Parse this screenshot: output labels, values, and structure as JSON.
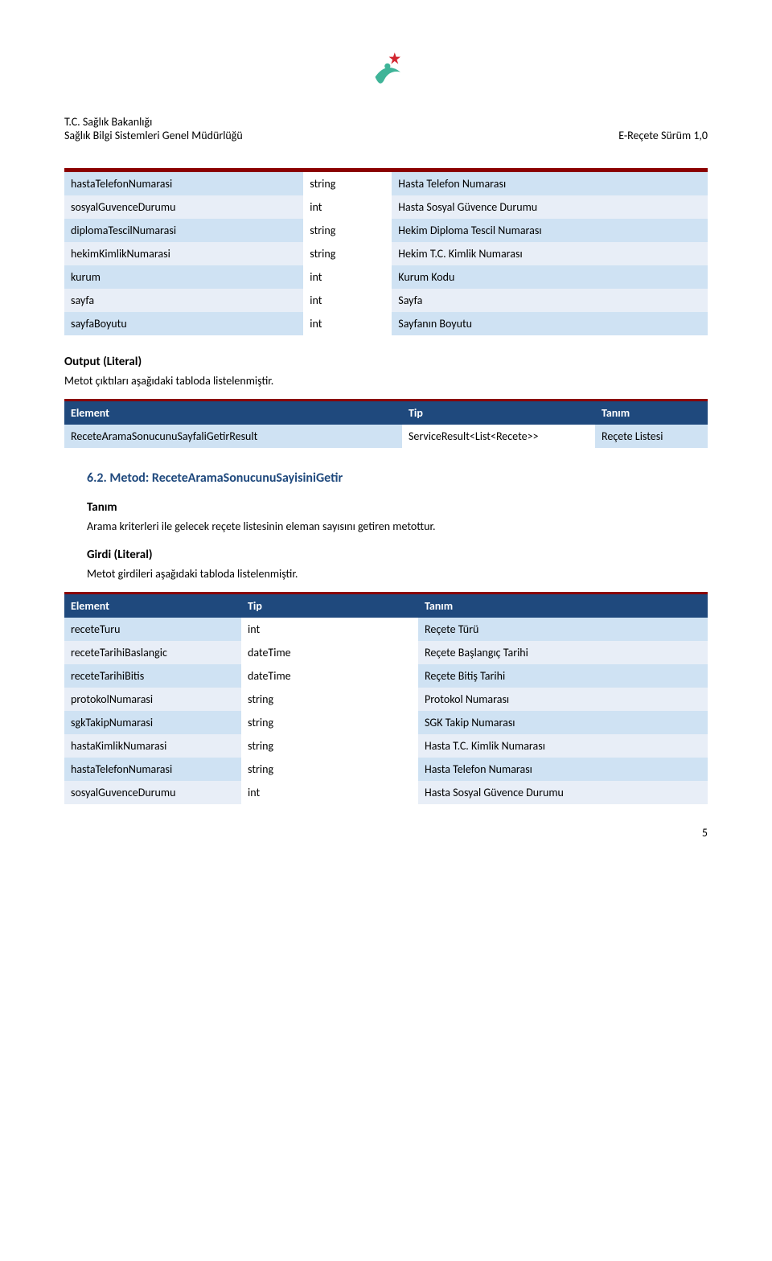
{
  "header": {
    "org_line1": "T.C. Sağlık Bakanlığı",
    "org_line2": "Sağlık Bilgi Sistemleri Genel Müdürlüğü",
    "version": "E-Reçete Sürüm 1,0"
  },
  "table1": {
    "rows": [
      {
        "element": "hastaTelefonNumarasi",
        "type": "string",
        "desc": "Hasta Telefon Numarası"
      },
      {
        "element": "sosyalGuvenceDurumu",
        "type": "int",
        "desc": "Hasta Sosyal Güvence Durumu"
      },
      {
        "element": "diplomaTescilNumarasi",
        "type": "string",
        "desc": "Hekim Diploma Tescil Numarası"
      },
      {
        "element": "hekimKimlikNumarasi",
        "type": "string",
        "desc": "Hekim T.C. Kimlik Numarası"
      },
      {
        "element": "kurum",
        "type": "int",
        "desc": "Kurum Kodu"
      },
      {
        "element": "sayfa",
        "type": "int",
        "desc": "Sayfa"
      },
      {
        "element": "sayfaBoyutu",
        "type": "int",
        "desc": "Sayfanın Boyutu"
      }
    ]
  },
  "output_literal": {
    "heading": "Output (Literal)",
    "text": "Metot çıktıları aşağıdaki tabloda listelenmiştir."
  },
  "table2": {
    "headers": {
      "c1": "Element",
      "c2": "Tip",
      "c3": "Tanım"
    },
    "rows": [
      {
        "element": "ReceteAramaSonucunuSayfaliGetirResult",
        "type": "ServiceResult<List<Recete>>",
        "desc": "Reçete Listesi"
      }
    ]
  },
  "method": {
    "heading": "6.2. Metod: ReceteAramaSonucunuSayisiniGetir",
    "tanim_label": "Tanım",
    "tanim_text": "Arama kriterleri ile gelecek reçete listesinin eleman sayısını getiren metottur.",
    "girdi_label": "Girdi (Literal)",
    "girdi_text": "Metot girdileri aşağıdaki tabloda listelenmiştir."
  },
  "table3": {
    "headers": {
      "c1": "Element",
      "c2": "Tip",
      "c3": "Tanım"
    },
    "rows": [
      {
        "element": " receteTuru",
        "type": "int",
        "desc": "Reçete Türü"
      },
      {
        "element": "receteTarihiBaslangic",
        "type": "dateTime",
        "desc": "Reçete Başlangıç Tarihi"
      },
      {
        "element": "receteTarihiBitis",
        "type": "dateTime",
        "desc": "Reçete Bitiş Tarihi"
      },
      {
        "element": "protokolNumarasi",
        "type": "string",
        "desc": "Protokol Numarası"
      },
      {
        "element": "sgkTakipNumarasi",
        "type": "string",
        "desc": "SGK Takip Numarası"
      },
      {
        "element": "hastaKimlikNumarasi",
        "type": "string",
        "desc": "Hasta T.C. Kimlik Numarası"
      },
      {
        "element": "hastaTelefonNumarasi",
        "type": "string",
        "desc": "Hasta Telefon Numarası"
      },
      {
        "element": "sosyalGuvenceDurumu",
        "type": "int",
        "desc": "Hasta Sosyal Güvence Durumu"
      }
    ]
  },
  "page_number": "5",
  "colors": {
    "header_bg": "#1f497d",
    "header_border_top": "#8b0000",
    "row_even": "#cfe2f3",
    "row_odd": "#e8eef7",
    "accent_red": "#d22630",
    "accent_teal": "#3fb498"
  }
}
